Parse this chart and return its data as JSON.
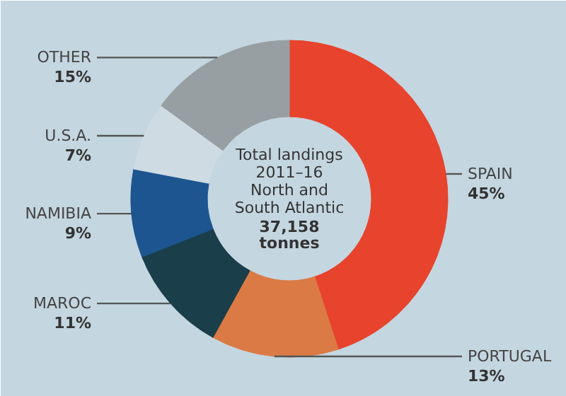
{
  "chart_data": {
    "type": "donut",
    "categories": [
      "SPAIN",
      "PORTUGAL",
      "MAROC",
      "NAMIBIA",
      "U.S.A.",
      "OTHER"
    ],
    "values": [
      45,
      13,
      11,
      9,
      7,
      15
    ],
    "colors": [
      "#e8432c",
      "#db7a45",
      "#1a3e4a",
      "#1c5590",
      "#cfdbe2",
      "#979fa3"
    ],
    "value_labels": [
      "45%",
      "13%",
      "11%",
      "9%",
      "7%",
      "15%"
    ],
    "annotations": [
      "Total landings",
      "2011–16",
      "North and",
      "South Atlantic",
      "37,158",
      "tonnes"
    ]
  }
}
